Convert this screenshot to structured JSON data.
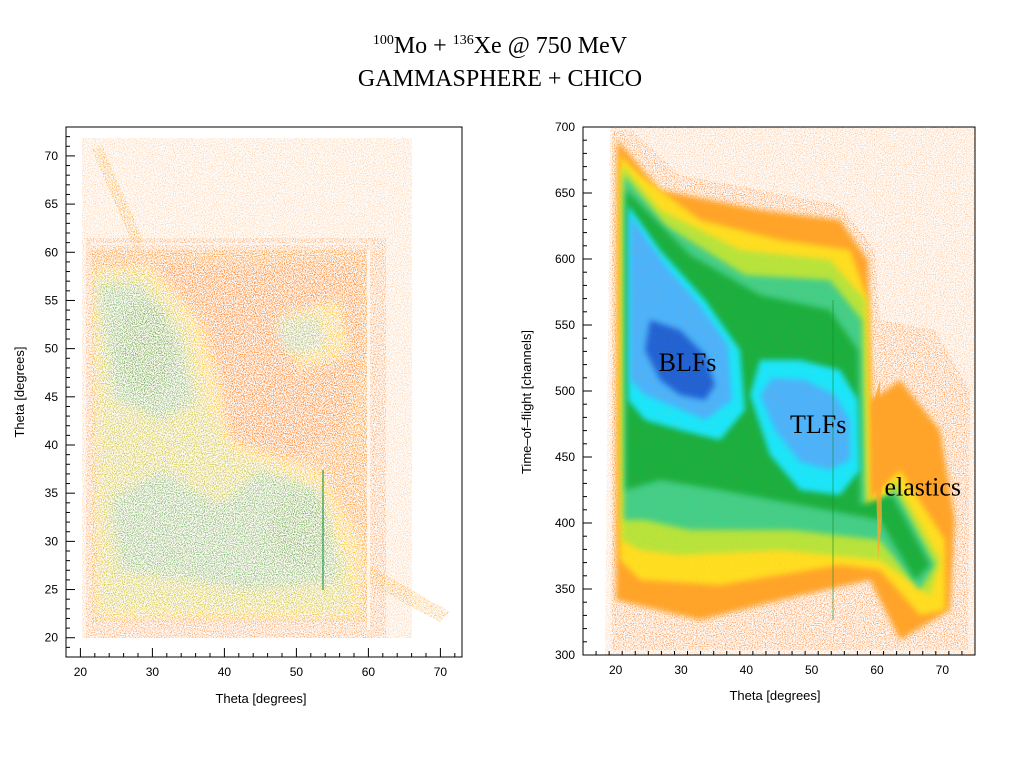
{
  "slide": {
    "title_line1": {
      "mo_mass": "100",
      "mo_symbol": "Mo + ",
      "xe_mass": "136",
      "xe_rest": "Xe @ 750 MeV"
    },
    "title_line2": "GAMMASPHERE + CHICO"
  },
  "colors": {
    "orange": "#ff7b1c",
    "light_orange": "#ffa52a",
    "yellow": "#ffe020",
    "yellow_green": "#b6e63c",
    "aqua_green": "#3fd08a",
    "green": "#16b040",
    "cyan": "#18e8ff",
    "light_blue": "#48b4ff",
    "blue": "#1a62d8"
  },
  "chart_data": [
    {
      "type": "heatmap",
      "title": "",
      "xlabel": "Theta [degrees]",
      "ylabel": "Theta [degrees]",
      "xlim": [
        18,
        73
      ],
      "ylim": [
        18,
        73
      ],
      "x_ticks": [
        20,
        30,
        40,
        50,
        60,
        70
      ],
      "y_ticks": [
        20,
        25,
        30,
        35,
        40,
        45,
        50,
        55,
        60,
        65,
        70
      ],
      "grid": false,
      "regions": [
        {
          "name": "coincidence box",
          "x_range": [
            21,
            60
          ],
          "y_range": [
            21,
            60
          ]
        },
        {
          "name": "high-intensity band",
          "x_range": [
            22,
            60
          ],
          "y_range": [
            22,
            55
          ]
        }
      ],
      "annotations": []
    },
    {
      "type": "heatmap",
      "title": "",
      "xlabel": "Theta [degrees]",
      "ylabel": "Time–of–flight [channels]",
      "xlim": [
        15,
        75
      ],
      "ylim": [
        300,
        700
      ],
      "x_ticks": [
        20,
        30,
        40,
        50,
        60,
        70
      ],
      "y_ticks": [
        300,
        350,
        400,
        450,
        500,
        550,
        600,
        650,
        700
      ],
      "grid": false,
      "annotations": [
        {
          "text": "BLFs",
          "x": 31,
          "y": 515
        },
        {
          "text": "TLFs",
          "x": 51,
          "y": 468
        },
        {
          "text": "elastics",
          "x": 67,
          "y": 421
        }
      ]
    }
  ]
}
